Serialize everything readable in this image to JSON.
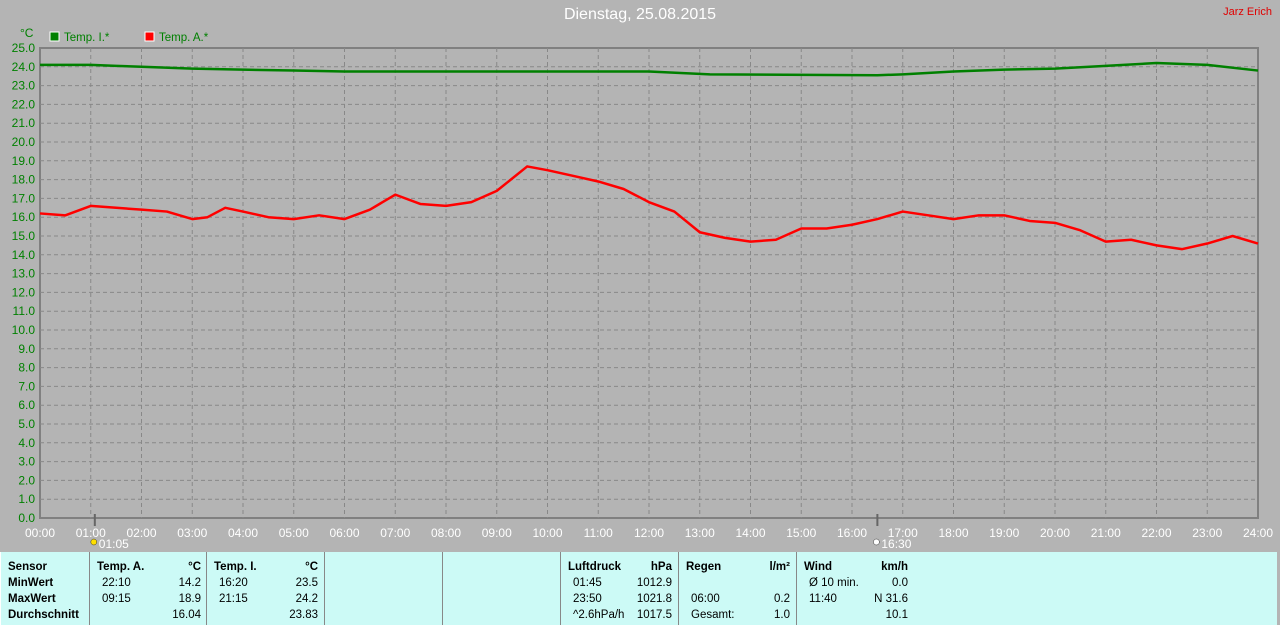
{
  "header": {
    "title": "Dienstag, 25.08.2015",
    "author": "Jarz Erich"
  },
  "chart_data": {
    "type": "line",
    "ylabel": "°C",
    "ylim": [
      0,
      25
    ],
    "xlim": [
      "00:00",
      "24:00"
    ],
    "grid": true,
    "legend_placement": "top-left",
    "x_ticks": [
      "00:00",
      "01:00",
      "02:00",
      "03:00",
      "04:00",
      "05:00",
      "06:00",
      "07:00",
      "08:00",
      "09:00",
      "10:00",
      "11:00",
      "12:00",
      "13:00",
      "14:00",
      "15:00",
      "16:00",
      "17:00",
      "18:00",
      "19:00",
      "20:00",
      "21:00",
      "22:00",
      "23:00",
      "24:00"
    ],
    "y_ticks": [
      "0.0",
      "1.0",
      "2.0",
      "3.0",
      "4.0",
      "5.0",
      "6.0",
      "7.0",
      "8.0",
      "9.0",
      "10.0",
      "11.0",
      "12.0",
      "13.0",
      "14.0",
      "15.0",
      "16.0",
      "17.0",
      "18.0",
      "19.0",
      "20.0",
      "21.0",
      "22.0",
      "23.0",
      "24.0",
      "25.0"
    ],
    "markers": [
      {
        "label": "01:05",
        "hour": 1.08,
        "icon": "sunrise-icon"
      },
      {
        "label": "16:30",
        "hour": 16.5,
        "icon": "sunset-icon"
      }
    ],
    "series": [
      {
        "name": "Temp. I.*",
        "color": "#008000",
        "x": [
          0,
          1,
          1.5,
          2,
          3,
          5,
          6,
          12,
          13.2,
          16.5,
          17,
          18,
          19,
          20,
          21,
          22,
          23,
          24
        ],
        "values": [
          24.1,
          24.1,
          24.05,
          24.0,
          23.9,
          23.8,
          23.75,
          23.75,
          23.6,
          23.55,
          23.6,
          23.75,
          23.85,
          23.9,
          24.05,
          24.2,
          24.1,
          23.8
        ]
      },
      {
        "name": "Temp. A.*",
        "color": "#ff0000",
        "x": [
          0,
          0.5,
          1,
          1.5,
          2,
          2.5,
          3,
          3.3,
          3.65,
          4,
          4.5,
          5,
          5.5,
          6,
          6.5,
          7,
          7.5,
          8,
          8.5,
          9,
          9.6,
          10,
          10.5,
          11,
          11.5,
          12,
          12.5,
          13,
          13.5,
          14,
          14.5,
          15,
          15.5,
          16,
          16.5,
          17,
          17.5,
          18,
          18.5,
          19,
          19.5,
          20,
          20.5,
          21,
          21.5,
          22,
          22.5,
          23,
          23.5,
          24
        ],
        "values": [
          16.2,
          16.1,
          16.6,
          16.5,
          16.4,
          16.3,
          15.9,
          16.0,
          16.5,
          16.3,
          16.0,
          15.9,
          16.1,
          15.9,
          16.4,
          17.2,
          16.7,
          16.6,
          16.8,
          17.4,
          18.7,
          18.5,
          18.2,
          17.9,
          17.5,
          16.8,
          16.3,
          15.2,
          14.9,
          14.7,
          14.8,
          15.4,
          15.4,
          15.6,
          15.9,
          16.3,
          16.1,
          15.9,
          16.1,
          16.1,
          15.8,
          15.7,
          15.3,
          14.7,
          14.8,
          14.5,
          14.3,
          14.6,
          15.0,
          14.6
        ]
      }
    ]
  },
  "table": {
    "columns": [
      {
        "rows": [
          [
            "Sensor",
            ""
          ],
          [
            "MinWert",
            ""
          ],
          [
            "MaxWert",
            ""
          ],
          [
            "Durchschnitt",
            ""
          ]
        ]
      },
      {
        "rows": [
          [
            "Temp. A.",
            "°C"
          ],
          [
            "22:10",
            "14.2"
          ],
          [
            "09:15",
            "18.9"
          ],
          [
            "",
            "16.04"
          ]
        ]
      },
      {
        "rows": [
          [
            "Temp. I.",
            "°C"
          ],
          [
            "16:20",
            "23.5"
          ],
          [
            "21:15",
            "24.2"
          ],
          [
            "",
            "23.83"
          ]
        ]
      },
      {
        "rows": []
      },
      {
        "rows": []
      },
      {
        "rows": [
          [
            "Luftdruck",
            "hPa"
          ],
          [
            "01:45",
            "1012.9"
          ],
          [
            "23:50",
            "1021.8"
          ],
          [
            "^2.6hPa/h",
            "1017.5"
          ]
        ]
      },
      {
        "rows": [
          [
            "Regen",
            "l/m²"
          ],
          [
            "",
            ""
          ],
          [
            "06:00",
            "0.2"
          ],
          [
            "Gesamt:",
            "1.0"
          ]
        ]
      },
      {
        "rows": [
          [
            "Wind",
            "km/h"
          ],
          [
            "Ø 10 min.",
            "0.0"
          ],
          [
            "11:40",
            "N 31.6"
          ],
          [
            "",
            "10.1"
          ]
        ]
      }
    ]
  }
}
